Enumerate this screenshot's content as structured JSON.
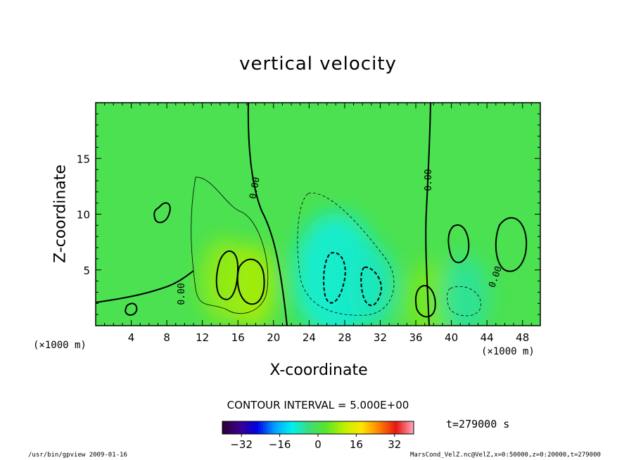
{
  "chart_data": {
    "type": "heatmap",
    "title": "vertical velocity",
    "xlabel": "X-coordinate",
    "ylabel": "Z-coordinate",
    "x_unit": "(×1000 m)",
    "z_unit": "(×1000 m)",
    "xlim": [
      0,
      50
    ],
    "ylim": [
      0,
      20
    ],
    "x_ticks": [
      4,
      8,
      12,
      16,
      20,
      24,
      28,
      32,
      36,
      40,
      44,
      48
    ],
    "y_ticks": [
      5,
      10,
      15
    ],
    "contour_interval_text": "CONTOUR INTERVAL = 5.000E+00",
    "contour_interval": 5,
    "contour_labels": [
      "0.00",
      "0.00",
      "0.00",
      "0.00"
    ],
    "colorbar": {
      "ticks": [
        "−32",
        "−16",
        "0",
        "16",
        "32"
      ],
      "range": [
        -40,
        40
      ],
      "colormap": "rainbow (dark purple → blue → cyan → green → yellow → red → pink)"
    },
    "field_features": [
      {
        "kind": "updraft",
        "x": 17.5,
        "z": 3.5,
        "max": 10
      },
      {
        "kind": "updraft",
        "x": 14.5,
        "z": 4.0,
        "max": 8
      },
      {
        "kind": "updraft",
        "x": 37.5,
        "z": 2.0,
        "max": 6
      },
      {
        "kind": "downdraft",
        "x": 27.0,
        "z": 4.5,
        "min": -10
      },
      {
        "kind": "downdraft",
        "x": 31.0,
        "z": 3.5,
        "min": -8
      },
      {
        "kind": "downdraft",
        "x": 41.5,
        "z": 2.5,
        "min": -6
      }
    ],
    "time_text": "t=279000 s"
  },
  "footer": {
    "left": "/usr/bin/gpview   2009-01-16",
    "right": "MarsCond_VelZ.nc@VelZ,x=0:50000,z=0:20000,t=279000"
  }
}
